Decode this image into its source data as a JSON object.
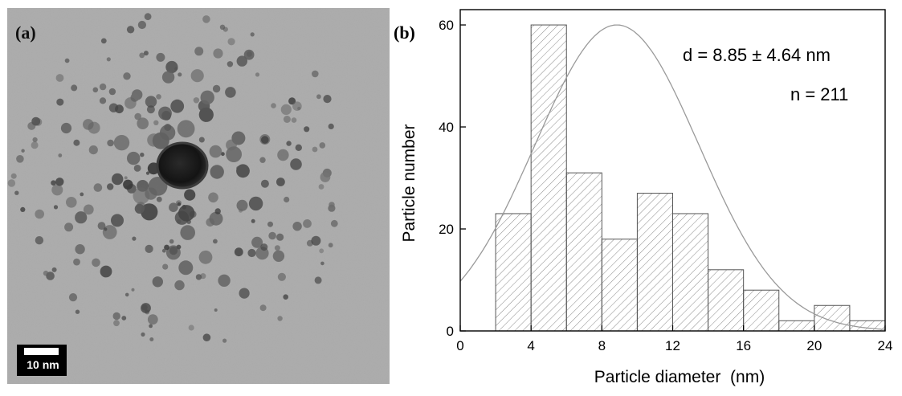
{
  "panel_a": {
    "label": "(a)",
    "scale_bar_label": "10 nm"
  },
  "panel_b": {
    "label": "(b)"
  },
  "chart_data": {
    "type": "bar",
    "title": "",
    "xlabel": "Particle diameter  (nm)",
    "ylabel": "Particle number",
    "xlim": [
      0,
      24
    ],
    "ylim": [
      0,
      63
    ],
    "xticks": [
      0,
      4,
      8,
      12,
      16,
      20,
      24
    ],
    "yticks": [
      0,
      20,
      40,
      60
    ],
    "bins": [
      {
        "from": 2,
        "to": 4,
        "count": 23
      },
      {
        "from": 4,
        "to": 6,
        "count": 60
      },
      {
        "from": 6,
        "to": 8,
        "count": 31
      },
      {
        "from": 8,
        "to": 10,
        "count": 18
      },
      {
        "from": 10,
        "to": 12,
        "count": 27
      },
      {
        "from": 12,
        "to": 14,
        "count": 23
      },
      {
        "from": 14,
        "to": 16,
        "count": 12
      },
      {
        "from": 16,
        "to": 18,
        "count": 8
      },
      {
        "from": 18,
        "to": 20,
        "count": 2
      },
      {
        "from": 20,
        "to": 22,
        "count": 5
      },
      {
        "from": 22,
        "to": 24,
        "count": 2
      }
    ],
    "fit_curve": {
      "type": "gaussian",
      "mean": 8.85,
      "sd": 4.64,
      "peak": 60
    },
    "annotations": [
      "d = 8.85 ± 4.64 nm",
      "n = 211"
    ],
    "bar_fill": "hatched",
    "colors": {
      "bar_edge": "#555555",
      "hatch": "#8a8a8a",
      "curve": "#9a9a9a",
      "axis": "#000000"
    }
  }
}
